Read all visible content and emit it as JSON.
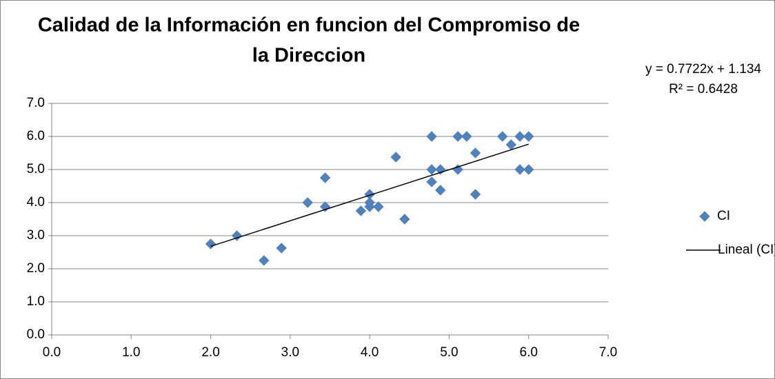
{
  "chart_data": {
    "type": "scatter",
    "title": [
      "Calidad de la Información en funcion del Compromiso de",
      "la Direccion"
    ],
    "series": [
      {
        "name": "CI",
        "color": "#4f81bd",
        "x": [
          2.0,
          2.33,
          2.67,
          2.89,
          3.22,
          3.44,
          3.44,
          3.89,
          4.0,
          4.0,
          4.0,
          4.11,
          4.33,
          4.44,
          4.78,
          4.78,
          4.78,
          4.89,
          4.89,
          5.11,
          5.11,
          5.22,
          5.33,
          5.33,
          5.67,
          5.78,
          5.89,
          5.89,
          6.0,
          6.0
        ],
        "values": [
          2.75,
          3.0,
          2.25,
          2.625,
          4.0,
          4.75,
          3.875,
          3.75,
          4.25,
          4.0,
          3.875,
          3.875,
          5.375,
          3.5,
          6.0,
          5.0,
          4.625,
          5.0,
          4.375,
          6.0,
          5.0,
          6.0,
          5.5,
          4.25,
          6.0,
          5.75,
          6.0,
          5.0,
          6.0,
          5.0
        ]
      }
    ],
    "trendline": {
      "name": "Lineal (CI)",
      "color": "#000000",
      "equation": "y = 0.7722x + 1.134",
      "r_squared": "R² = 0.6428",
      "x": [
        2.0,
        6.0
      ],
      "values": [
        2.678,
        5.767
      ]
    },
    "xlim": [
      0,
      7
    ],
    "ylim": [
      0,
      7
    ],
    "xticks": [
      {
        "value": 0,
        "label": "0.0"
      },
      {
        "value": 1,
        "label": "1.0"
      },
      {
        "value": 2,
        "label": "2.0"
      },
      {
        "value": 3,
        "label": "3.0"
      },
      {
        "value": 4,
        "label": "4.0"
      },
      {
        "value": 5,
        "label": "5.0"
      },
      {
        "value": 6,
        "label": "6.0"
      },
      {
        "value": 7,
        "label": "7.0"
      }
    ],
    "yticks": [
      {
        "value": 0,
        "label": "0.0"
      },
      {
        "value": 1,
        "label": "1.0"
      },
      {
        "value": 2,
        "label": "2.0"
      },
      {
        "value": 3,
        "label": "3.0"
      },
      {
        "value": 4,
        "label": "4.0"
      },
      {
        "value": 5,
        "label": "5.0"
      },
      {
        "value": 6,
        "label": "6.0"
      },
      {
        "value": 7,
        "label": "7.0"
      }
    ],
    "grid": true,
    "legend": "right"
  }
}
